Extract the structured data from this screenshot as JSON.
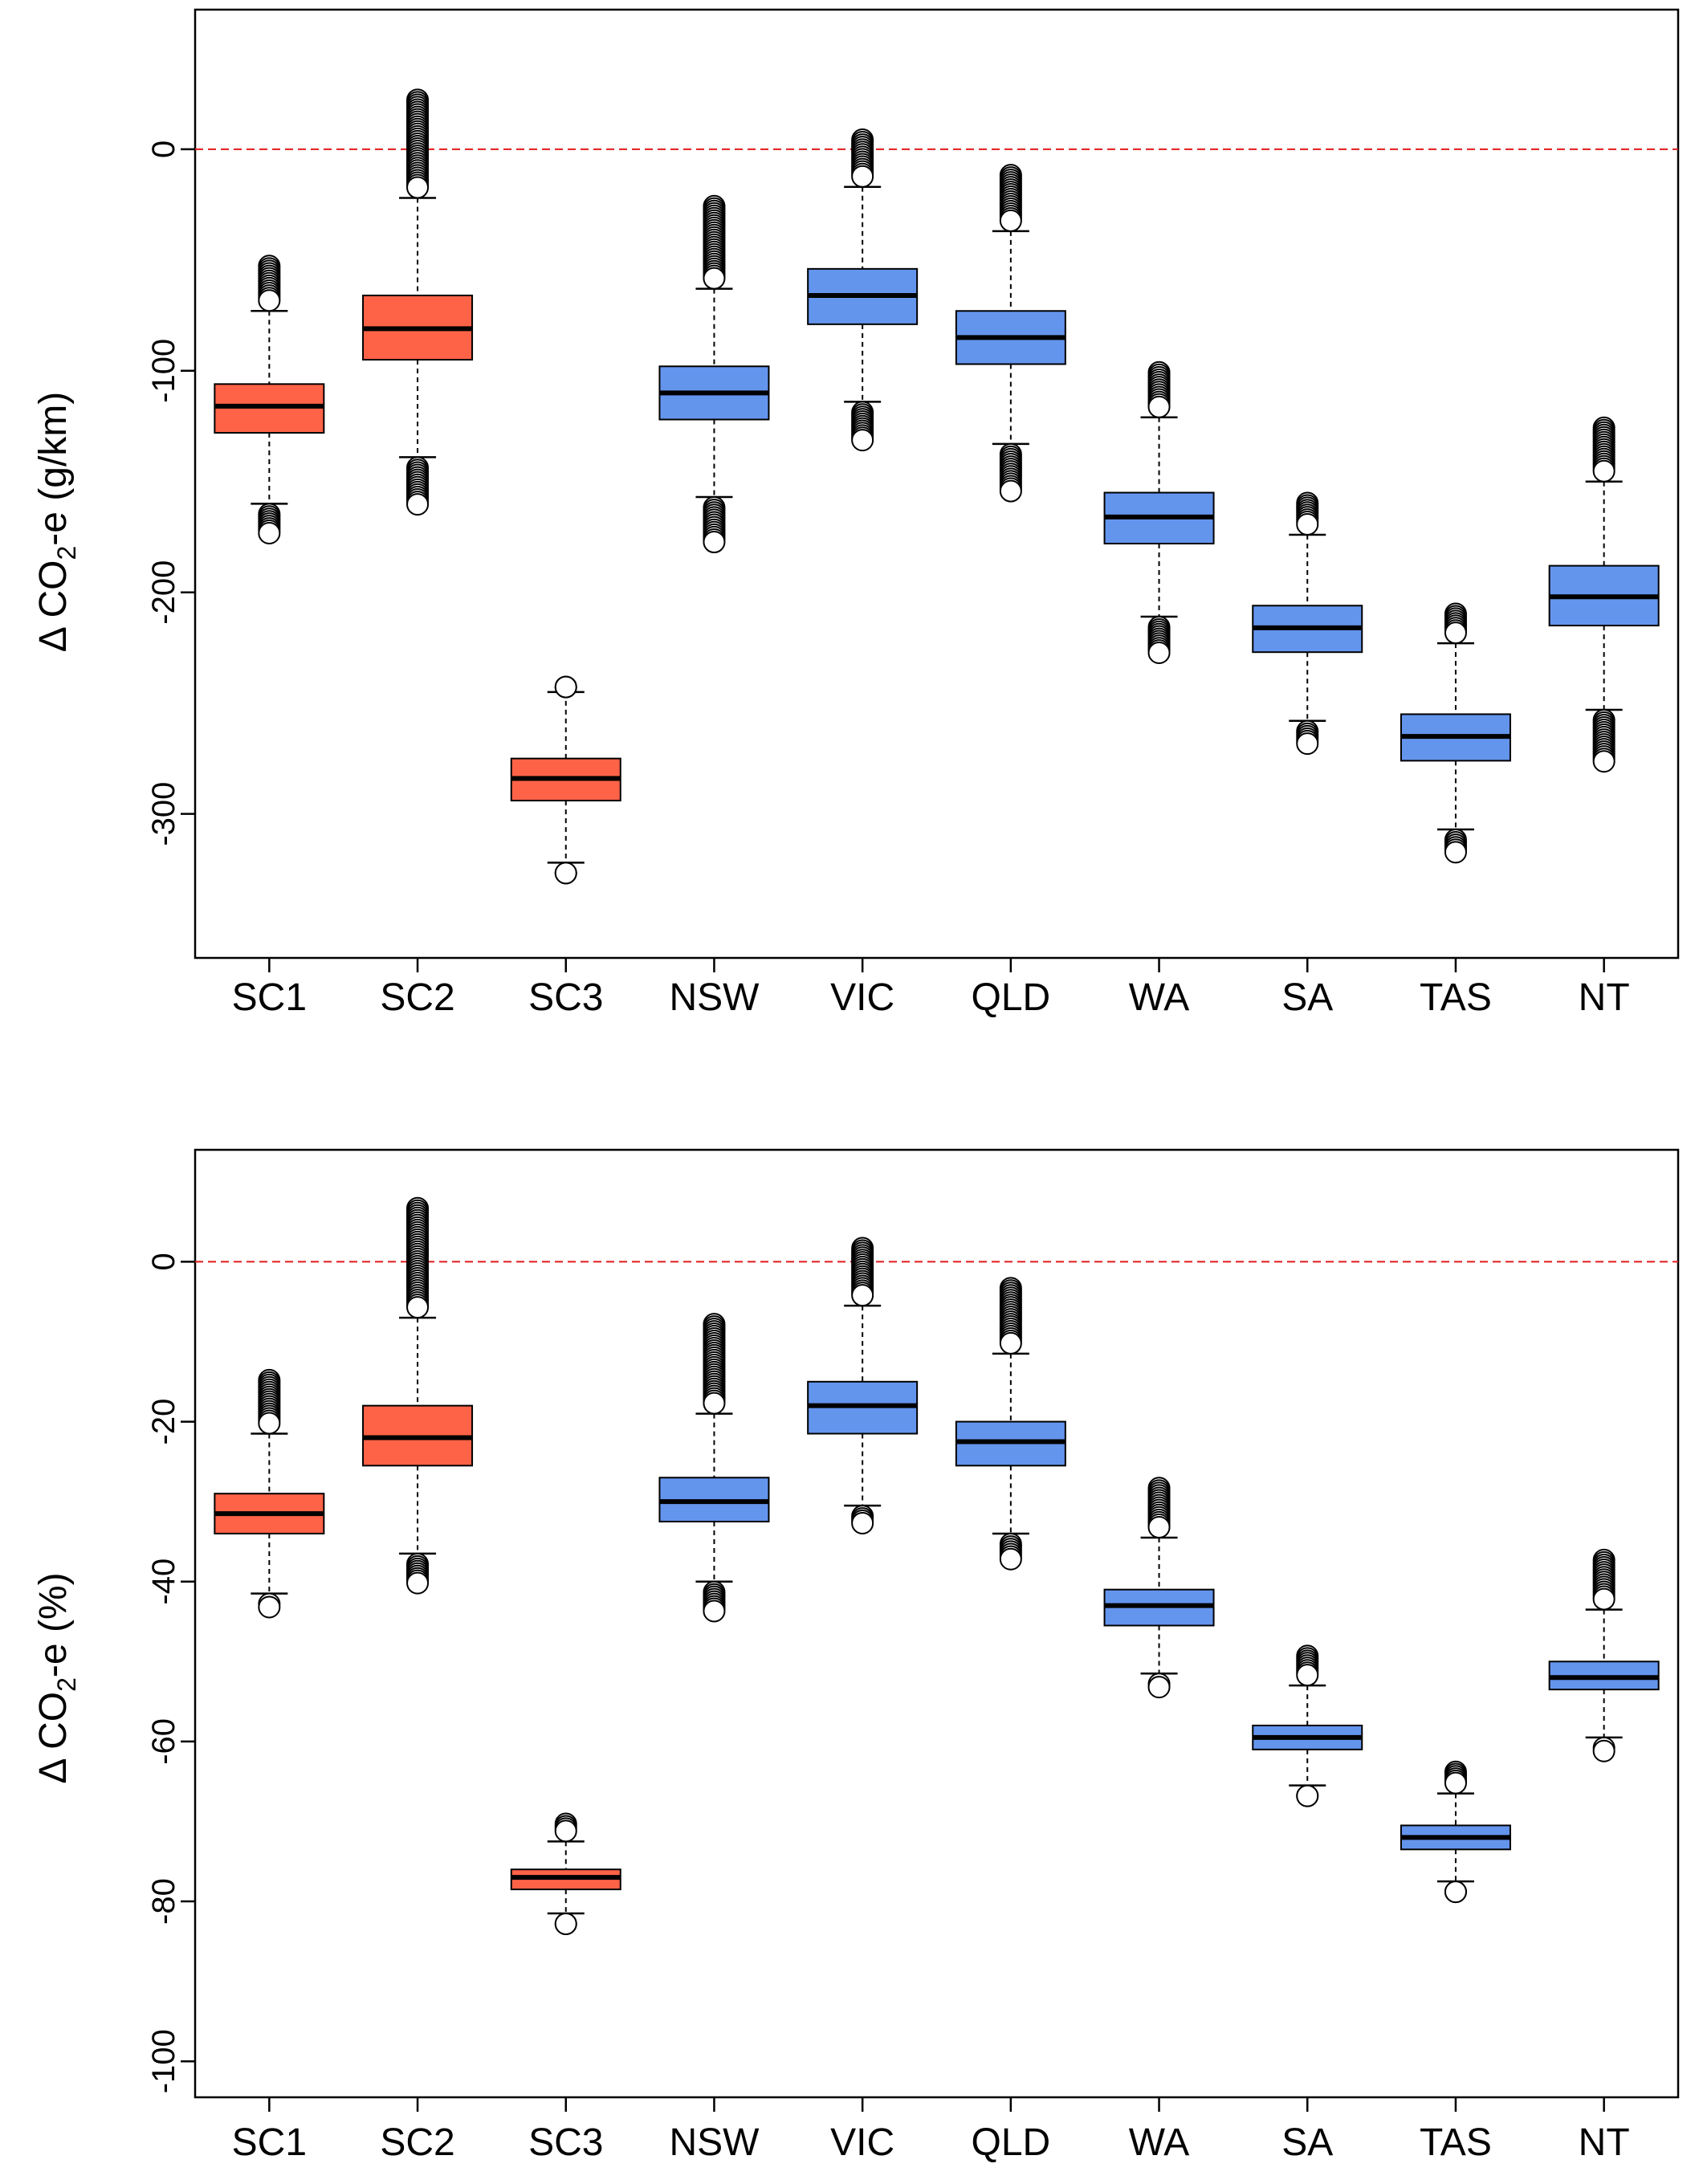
{
  "colors": {
    "scenario": "#ff6347",
    "state": "#6495ed",
    "zero_line": "#e31a1c",
    "axis": "#000000"
  },
  "chart_data": [
    {
      "type": "boxplot",
      "ylabel_prefix": "Δ CO",
      "ylabel_sub": "2",
      "ylabel_suffix": "-e (g/km)",
      "ylim": [
        -365,
        63
      ],
      "yticks": [
        0,
        -100,
        -200,
        -300
      ],
      "ytick_labels": [
        "0",
        "-100",
        "-200",
        "-300"
      ],
      "reference_line": 0,
      "categories": [
        "SC1",
        "SC2",
        "SC3",
        "NSW",
        "VIC",
        "QLD",
        "WA",
        "SA",
        "TAS",
        "NT"
      ],
      "groups": [
        "scenario",
        "scenario",
        "scenario",
        "state",
        "state",
        "state",
        "state",
        "state",
        "state",
        "state"
      ],
      "boxes": [
        {
          "category": "SC1",
          "whisker_low": -160,
          "q1": -128,
          "median": -116,
          "q3": -106,
          "whisker_high": -73,
          "outliers_low": [
            -160,
            -178
          ],
          "outliers_high": [
            -73,
            -48
          ]
        },
        {
          "category": "SC2",
          "whisker_low": -139,
          "q1": -95,
          "median": -81,
          "q3": -66,
          "whisker_high": -22,
          "outliers_low": [
            -139,
            -165
          ],
          "outliers_high": [
            -22,
            27
          ]
        },
        {
          "category": "SC3",
          "whisker_low": -322,
          "q1": -294,
          "median": -284,
          "q3": -275,
          "whisker_high": -245,
          "outliers_low": [
            -322,
            -330
          ],
          "outliers_high": [
            -245,
            -238
          ]
        },
        {
          "category": "NSW",
          "whisker_low": -157,
          "q1": -122,
          "median": -110,
          "q3": -98,
          "whisker_high": -63,
          "outliers_low": [
            -157,
            -182
          ],
          "outliers_high": [
            -63,
            -21
          ]
        },
        {
          "category": "VIC",
          "whisker_low": -114,
          "q1": -79,
          "median": -66,
          "q3": -54,
          "whisker_high": -17,
          "outliers_low": [
            -114,
            -136
          ],
          "outliers_high": [
            -17,
            9
          ]
        },
        {
          "category": "QLD",
          "whisker_low": -133,
          "q1": -97,
          "median": -85,
          "q3": -73,
          "whisker_high": -37,
          "outliers_low": [
            -133,
            -159
          ],
          "outliers_high": [
            -37,
            -7
          ]
        },
        {
          "category": "WA",
          "whisker_low": -211,
          "q1": -178,
          "median": -166,
          "q3": -155,
          "whisker_high": -121,
          "outliers_low": [
            -211,
            -232
          ],
          "outliers_high": [
            -121,
            -96
          ]
        },
        {
          "category": "SA",
          "whisker_low": -258,
          "q1": -227,
          "median": -216,
          "q3": -206,
          "whisker_high": -174,
          "outliers_low": [
            -258,
            -273
          ],
          "outliers_high": [
            -174,
            -155
          ]
        },
        {
          "category": "TAS",
          "whisker_low": -307,
          "q1": -276,
          "median": -265,
          "q3": -255,
          "whisker_high": -223,
          "outliers_low": [
            -307,
            -322
          ],
          "outliers_high": [
            -223,
            -205
          ]
        },
        {
          "category": "NT",
          "whisker_low": -253,
          "q1": -215,
          "median": -202,
          "q3": -188,
          "whisker_high": -150,
          "outliers_low": [
            -253,
            -281
          ],
          "outliers_high": [
            -150,
            -121
          ]
        }
      ]
    },
    {
      "type": "boxplot",
      "ylabel_prefix": "Δ CO",
      "ylabel_sub": "2",
      "ylabel_suffix": "-e (%)",
      "ylim": [
        -104.5,
        14
      ],
      "yticks": [
        0,
        -20,
        -40,
        -60,
        -80,
        -100
      ],
      "ytick_labels": [
        "0",
        "-20",
        "-40",
        "-60",
        "-80",
        "-100"
      ],
      "reference_line": 0,
      "categories": [
        "SC1",
        "SC2",
        "SC3",
        "NSW",
        "VIC",
        "QLD",
        "WA",
        "SA",
        "TAS",
        "NT"
      ],
      "groups": [
        "scenario",
        "scenario",
        "scenario",
        "state",
        "state",
        "state",
        "state",
        "state",
        "state",
        "state"
      ],
      "boxes": [
        {
          "category": "SC1",
          "whisker_low": -41.5,
          "q1": -34,
          "median": -31.5,
          "q3": -29,
          "whisker_high": -21.5,
          "outliers_low": [
            -41.5,
            -44.5
          ],
          "outliers_high": [
            -21.5,
            -13.5
          ]
        },
        {
          "category": "SC2",
          "whisker_low": -36.5,
          "q1": -25.5,
          "median": -22,
          "q3": -18,
          "whisker_high": -7,
          "outliers_low": [
            -36.5,
            -41.5
          ],
          "outliers_high": [
            -7,
            8
          ]
        },
        {
          "category": "SC3",
          "whisker_low": -81.5,
          "q1": -78.5,
          "median": -77,
          "q3": -76,
          "whisker_high": -72.5,
          "outliers_low": [
            -81.5,
            -83
          ],
          "outliers_high": [
            -72.5,
            -69
          ]
        },
        {
          "category": "NSW",
          "whisker_low": -40,
          "q1": -32.5,
          "median": -30,
          "q3": -27,
          "whisker_high": -19,
          "outliers_low": [
            -40,
            -45
          ],
          "outliers_high": [
            -19,
            -6.5
          ]
        },
        {
          "category": "VIC",
          "whisker_low": -30.5,
          "q1": -21.5,
          "median": -18,
          "q3": -15,
          "whisker_high": -5.5,
          "outliers_low": [
            -30.5,
            -34
          ],
          "outliers_high": [
            -5.5,
            3
          ]
        },
        {
          "category": "QLD",
          "whisker_low": -34,
          "q1": -25.5,
          "median": -22.5,
          "q3": -20,
          "whisker_high": -11.5,
          "outliers_low": [
            -34,
            -38.5
          ],
          "outliers_high": [
            -11.5,
            -2
          ]
        },
        {
          "category": "WA",
          "whisker_low": -51.5,
          "q1": -45.5,
          "median": -43,
          "q3": -41,
          "whisker_high": -34.5,
          "outliers_low": [
            -51.5,
            -54.5
          ],
          "outliers_high": [
            -34.5,
            -27
          ]
        },
        {
          "category": "SA",
          "whisker_low": -65.5,
          "q1": -61,
          "median": -59.5,
          "q3": -58,
          "whisker_high": -53,
          "outliers_low": [
            -65.5,
            -67.5
          ],
          "outliers_high": [
            -53,
            -48
          ]
        },
        {
          "category": "TAS",
          "whisker_low": -77.5,
          "q1": -73.5,
          "median": -72,
          "q3": -70.5,
          "whisker_high": -66.5,
          "outliers_low": [
            -77.5,
            -79
          ],
          "outliers_high": [
            -66.5,
            -62.5
          ]
        },
        {
          "category": "NT",
          "whisker_low": -59.5,
          "q1": -53.5,
          "median": -52,
          "q3": -50,
          "whisker_high": -43.5,
          "outliers_low": [
            -59.5,
            -62.5
          ],
          "outliers_high": [
            -43.5,
            -36
          ]
        }
      ]
    }
  ]
}
